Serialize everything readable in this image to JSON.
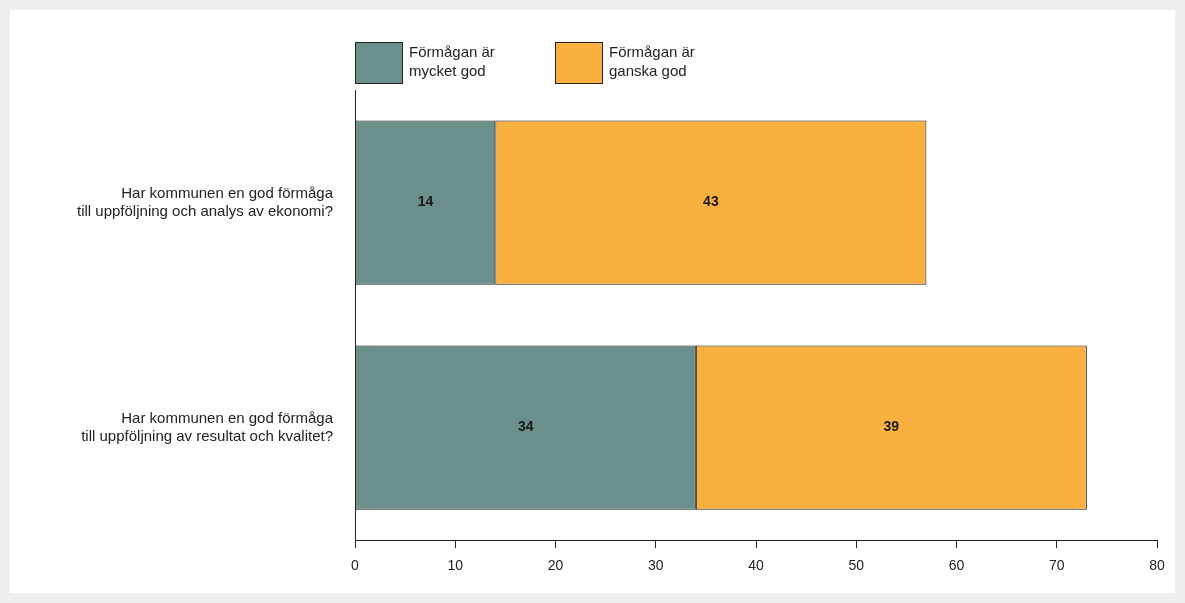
{
  "chart_data": {
    "type": "bar",
    "orientation": "horizontal",
    "stacked": true,
    "categories": [
      "Har kommunen en god förmåga till uppföljning och analys av ekonomi?",
      "Har kommunen en god förmåga till uppföljning av resultat och kvalitet?"
    ],
    "series": [
      {
        "name": "Förmågan är mycket god",
        "color": "#6b8f8a",
        "values": [
          14,
          34
        ]
      },
      {
        "name": "Förmågan är ganska god",
        "color": "#f9b03f",
        "values": [
          43,
          39
        ]
      }
    ],
    "data_labels": true,
    "xlim": [
      0,
      80
    ],
    "xticks": [
      0,
      10,
      20,
      30,
      40,
      50,
      60,
      70,
      80
    ],
    "grid": false,
    "legend": "top left"
  }
}
